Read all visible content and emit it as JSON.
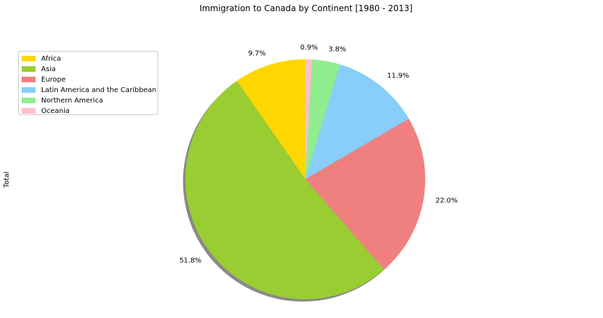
{
  "chart_data": {
    "type": "pie",
    "title": "Immigration to Canada by Continent [1980 - 2013]",
    "ylabel": "Total",
    "legend_position": "top-left",
    "shadow": true,
    "start_angle": 90,
    "slices": [
      {
        "label": "Africa",
        "value": 9.7,
        "pct_label": "9.7%",
        "color": "#ffd700"
      },
      {
        "label": "Asia",
        "value": 51.8,
        "pct_label": "51.8%",
        "color": "#9acd32"
      },
      {
        "label": "Europe",
        "value": 22.0,
        "pct_label": "22.0%",
        "color": "#f08080"
      },
      {
        "label": "Latin America and the Caribbean",
        "value": 11.9,
        "pct_label": "11.9%",
        "color": "#87cefa"
      },
      {
        "label": "Northern America",
        "value": 3.8,
        "pct_label": "3.8%",
        "color": "#90ee90"
      },
      {
        "label": "Oceania",
        "value": 0.9,
        "pct_label": "0.9%",
        "color": "#ffc0cb"
      }
    ]
  }
}
